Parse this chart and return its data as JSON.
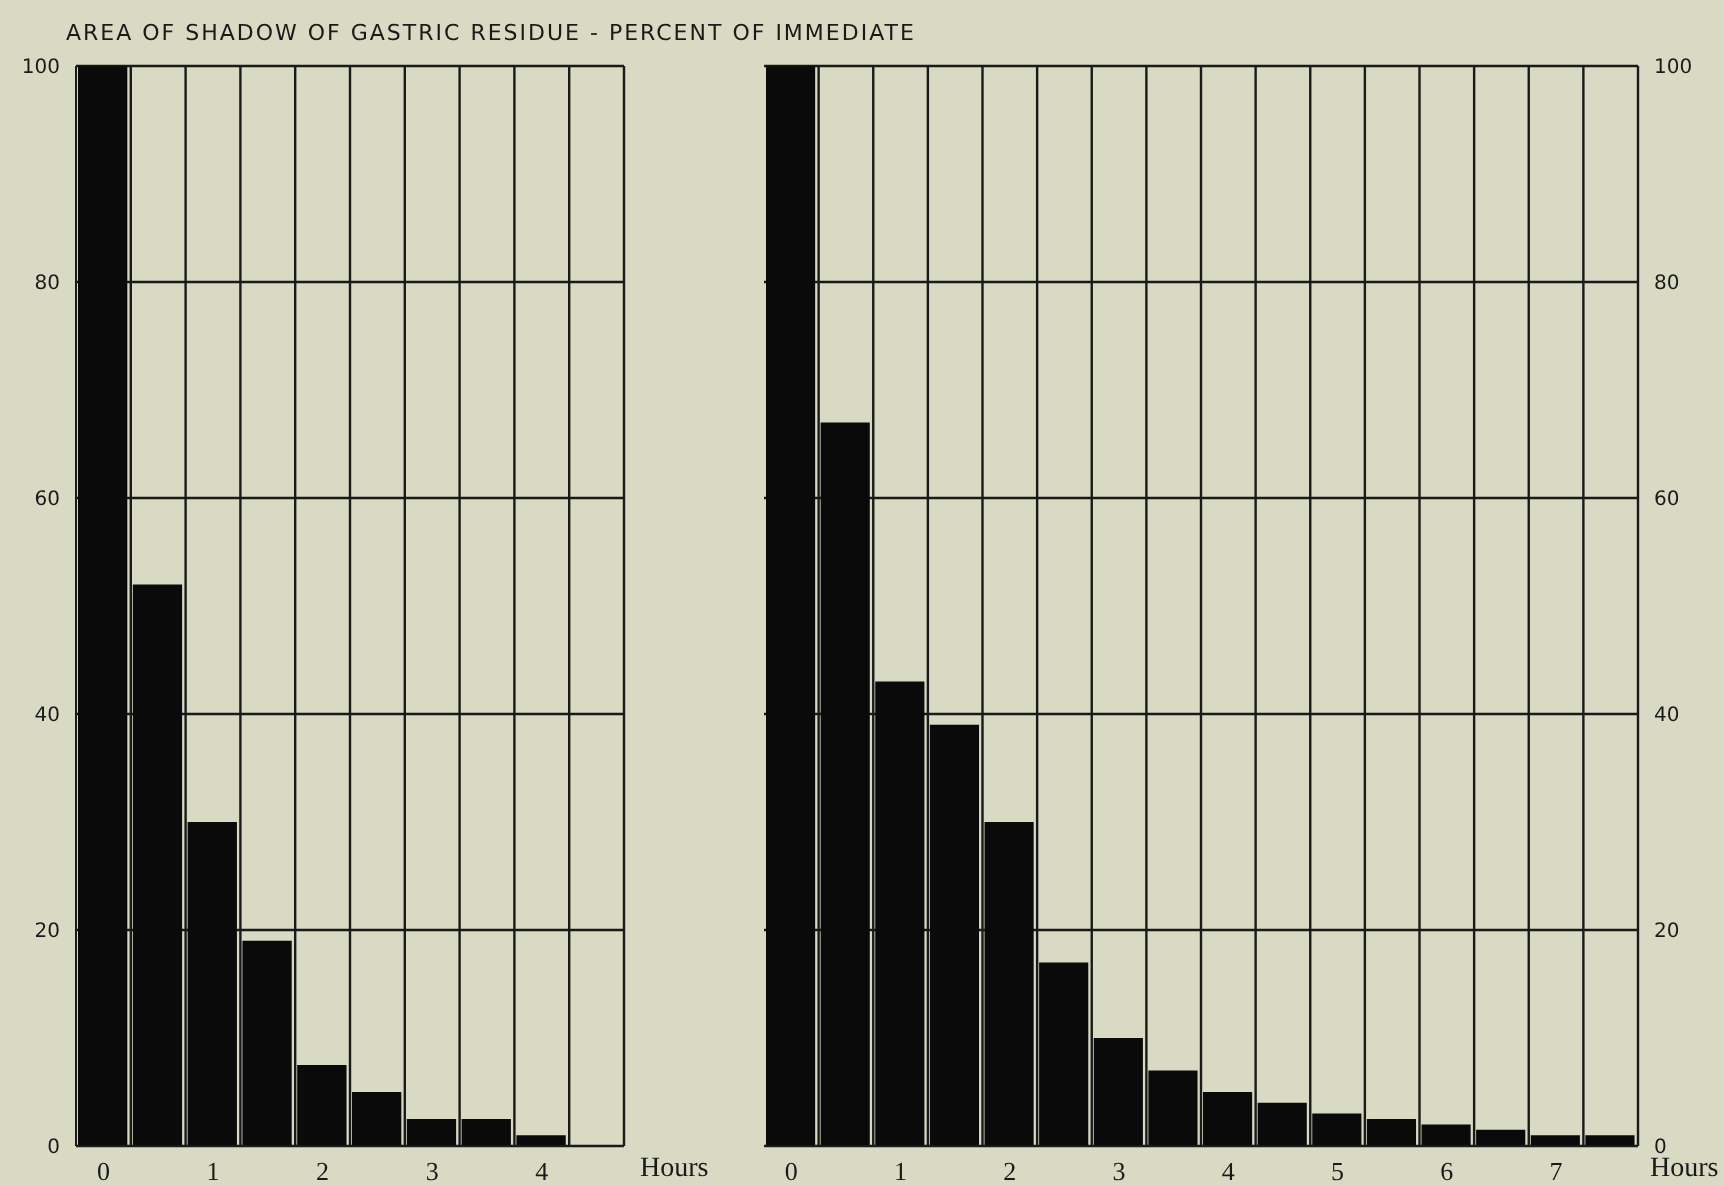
{
  "chart_data": [
    {
      "type": "bar",
      "title": "AREA OF SHADOW OF GASTRIC RESIDUE - PERCENT OF IMMEDIATE",
      "xlabel": "Hours",
      "x": [
        0,
        0.5,
        1,
        1.5,
        2,
        2.5,
        3,
        3.5,
        4,
        4.5
      ],
      "series": [
        {
          "color": "#0a0a0a",
          "values": [
            100,
            52,
            30,
            19,
            7.5,
            5,
            2.5,
            2.5,
            1,
            0
          ]
        }
      ],
      "xlim": [
        -0.25,
        4.75
      ],
      "xticks": [
        0,
        1,
        2,
        3,
        4,
        {
          "value": 0.25,
          "label": null
        },
        {
          "value": 0.75,
          "label": null
        },
        {
          "value": 1.25,
          "label": null
        },
        {
          "value": 1.75,
          "label": null
        },
        {
          "value": 2.25,
          "label": null
        },
        {
          "value": 2.75,
          "label": null
        },
        {
          "value": 3.25,
          "label": null
        },
        {
          "value": 3.75,
          "label": null
        },
        {
          "value": 4.25,
          "label": null
        },
        {
          "value": 4.75,
          "label": null
        }
      ],
      "ylim": [
        0,
        100
      ],
      "yticks": [
        0,
        20,
        40,
        60,
        80,
        100
      ],
      "grid": true
    },
    {
      "type": "bar",
      "xlabel": "Hours",
      "x": [
        0,
        0.5,
        1,
        1.5,
        2,
        2.5,
        3,
        3.5,
        4,
        4.5,
        5,
        5.5,
        6,
        6.5,
        7,
        7.5
      ],
      "series": [
        {
          "color": "#0a0a0a",
          "axis": "y2",
          "values": [
            100,
            67,
            43,
            39,
            30,
            17,
            10,
            7,
            5,
            4,
            3,
            2.5,
            2,
            1.5,
            1,
            1
          ]
        }
      ],
      "xlim": [
        -0.25,
        7.75
      ],
      "xticks": [
        0,
        1,
        2,
        3,
        4,
        5,
        6,
        7,
        {
          "value": 0.25,
          "label": null
        },
        {
          "value": 0.75,
          "label": null
        },
        {
          "value": 1.25,
          "label": null
        },
        {
          "value": 1.75,
          "label": null
        },
        {
          "value": 2.25,
          "label": null
        },
        {
          "value": 2.75,
          "label": null
        },
        {
          "value": 3.25,
          "label": null
        },
        {
          "value": 3.75,
          "label": null
        },
        {
          "value": 4.25,
          "label": null
        },
        {
          "value": 4.75,
          "label": null
        },
        {
          "value": 5.25,
          "label": null
        },
        {
          "value": 5.75,
          "label": null
        },
        {
          "value": 6.25,
          "label": null
        },
        {
          "value": 6.75,
          "label": null
        },
        {
          "value": 7.25,
          "label": null
        },
        {
          "value": 7.75,
          "label": null
        }
      ],
      "y2lim": [
        0,
        100
      ],
      "y2ticks": [
        0,
        20,
        40,
        60,
        80,
        100
      ],
      "grid": true
    }
  ]
}
